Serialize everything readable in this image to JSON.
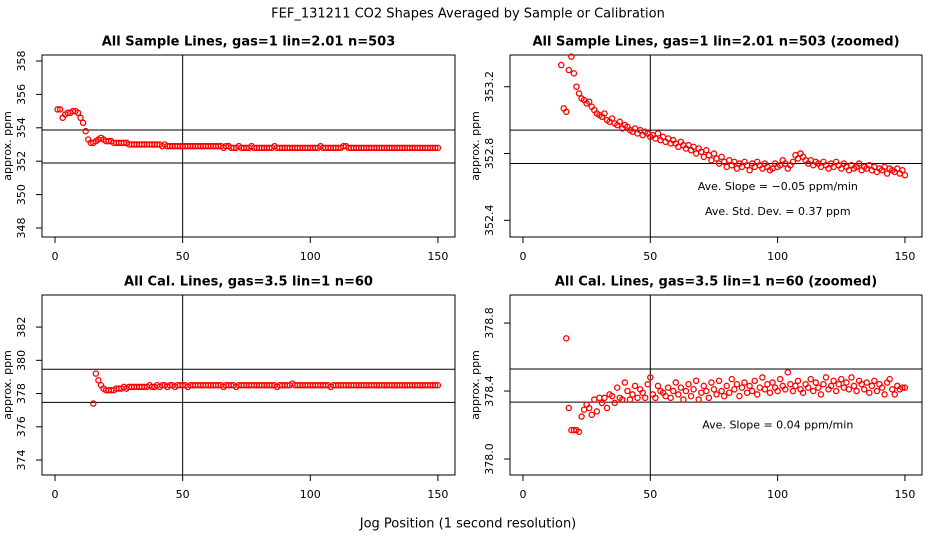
{
  "title": "FEF_131211  CO2 Shapes Averaged by Sample or Calibration",
  "xlabel": "Jog Position (1 second resolution)",
  "chart_data": [
    {
      "type": "scatter",
      "title": "All Sample Lines, gas=1 lin=2.01 n=503",
      "ylabel": "approx. ppm",
      "color": "#ff0000",
      "xlim": [
        -5.1,
        156.7
      ],
      "xticks": [
        0,
        50,
        100,
        150
      ],
      "ylim": [
        347.46,
        358.36
      ],
      "yticks": [
        348,
        350,
        352,
        354,
        356,
        358
      ],
      "ref_lines_y": [
        353.87,
        351.89
      ],
      "ref_line_x": 50,
      "x": [
        1,
        2,
        3,
        4,
        5,
        6,
        7,
        8,
        9,
        10,
        11,
        12,
        13,
        14,
        15,
        16,
        17,
        18,
        19,
        20,
        21,
        22,
        23,
        24,
        25,
        26,
        27,
        28,
        29,
        30,
        31,
        32,
        33,
        34,
        35,
        36,
        37,
        38,
        39,
        40,
        41,
        42,
        43,
        44,
        45,
        46,
        47,
        48,
        49,
        50,
        51,
        52,
        53,
        54,
        55,
        56,
        57,
        58,
        59,
        60,
        61,
        62,
        63,
        64,
        65,
        66,
        67,
        68,
        69,
        70,
        71,
        72,
        73,
        74,
        75,
        76,
        77,
        78,
        79,
        80,
        81,
        82,
        83,
        84,
        85,
        86,
        87,
        88,
        89,
        90,
        91,
        92,
        93,
        94,
        95,
        96,
        97,
        98,
        99,
        100,
        101,
        102,
        103,
        104,
        105,
        106,
        107,
        108,
        109,
        110,
        111,
        112,
        113,
        114,
        115,
        116,
        117,
        118,
        119,
        120,
        121,
        122,
        123,
        124,
        125,
        126,
        127,
        128,
        129,
        130,
        131,
        132,
        133,
        134,
        135,
        136,
        137,
        138,
        139,
        140,
        141,
        142,
        143,
        144,
        145,
        146,
        147,
        148,
        149,
        150
      ],
      "values": [
        355.1,
        355.1,
        354.6,
        354.8,
        354.9,
        354.9,
        355.0,
        355.0,
        354.9,
        354.6,
        354.3,
        353.8,
        353.3,
        353.1,
        353.1,
        353.2,
        353.3,
        353.4,
        353.3,
        353.2,
        353.2,
        353.2,
        353.1,
        353.1,
        353.1,
        353.1,
        353.1,
        353.1,
        353.0,
        353.0,
        353.0,
        353.0,
        353.0,
        353.0,
        353.0,
        353.0,
        353.0,
        353.0,
        353.0,
        353.0,
        353.0,
        352.9,
        353.0,
        352.9,
        352.9,
        352.9,
        352.9,
        352.9,
        352.9,
        352.9,
        352.9,
        352.9,
        352.9,
        352.9,
        352.9,
        352.9,
        352.9,
        352.9,
        352.9,
        352.9,
        352.9,
        352.9,
        352.9,
        352.9,
        352.9,
        352.8,
        352.9,
        352.9,
        352.8,
        352.8,
        352.8,
        352.9,
        352.8,
        352.8,
        352.8,
        352.8,
        352.9,
        352.8,
        352.8,
        352.8,
        352.8,
        352.8,
        352.8,
        352.8,
        352.8,
        352.9,
        352.8,
        352.8,
        352.8,
        352.8,
        352.8,
        352.8,
        352.8,
        352.8,
        352.8,
        352.8,
        352.8,
        352.8,
        352.8,
        352.8,
        352.8,
        352.8,
        352.8,
        352.9,
        352.8,
        352.8,
        352.8,
        352.8,
        352.8,
        352.8,
        352.8,
        352.8,
        352.9,
        352.9,
        352.8,
        352.8,
        352.8,
        352.8,
        352.8,
        352.8,
        352.8,
        352.8,
        352.8,
        352.8,
        352.8,
        352.8,
        352.8,
        352.8,
        352.8,
        352.8,
        352.8,
        352.8,
        352.8,
        352.8,
        352.8,
        352.8,
        352.8,
        352.8,
        352.8,
        352.8,
        352.8,
        352.8,
        352.8,
        352.8,
        352.8,
        352.8,
        352.8,
        352.8,
        352.8,
        352.8
      ]
    },
    {
      "type": "scatter",
      "title": "All Sample Lines, gas=1 lin=2.01 n=503 (zoomed)",
      "ylabel": "approx. ppm",
      "color": "#ff0000",
      "xlim": [
        -5.1,
        156.7
      ],
      "xticks": [
        0,
        50,
        100,
        150
      ],
      "ylim": [
        352.3,
        353.39
      ],
      "yticks": [
        352.4,
        352.8,
        353.2
      ],
      "ref_lines_y": [
        352.94,
        352.74
      ],
      "ref_line_x": 50,
      "annotations": [
        "Ave. Slope =  −0.05  ppm/min",
        "Ave. Std. Dev. =  0.37  ppm"
      ],
      "x": [
        15,
        16,
        17,
        18,
        19,
        20,
        21,
        22,
        23,
        24,
        25,
        26,
        27,
        28,
        29,
        30,
        31,
        32,
        33,
        34,
        35,
        36,
        37,
        38,
        39,
        40,
        41,
        42,
        43,
        44,
        45,
        46,
        47,
        48,
        49,
        50,
        51,
        52,
        53,
        54,
        55,
        56,
        57,
        58,
        59,
        60,
        61,
        62,
        63,
        64,
        65,
        66,
        67,
        68,
        69,
        70,
        71,
        72,
        73,
        74,
        75,
        76,
        77,
        78,
        79,
        80,
        81,
        82,
        83,
        84,
        85,
        86,
        87,
        88,
        89,
        90,
        91,
        92,
        93,
        94,
        95,
        96,
        97,
        98,
        99,
        100,
        101,
        102,
        103,
        104,
        105,
        106,
        107,
        108,
        109,
        110,
        111,
        112,
        113,
        114,
        115,
        116,
        117,
        118,
        119,
        120,
        121,
        122,
        123,
        124,
        125,
        126,
        127,
        128,
        129,
        130,
        131,
        132,
        133,
        134,
        135,
        136,
        137,
        138,
        139,
        140,
        141,
        142,
        143,
        144,
        145,
        146,
        147,
        148,
        149,
        150
      ],
      "values": [
        353.33,
        353.07,
        353.05,
        353.3,
        353.38,
        353.28,
        353.2,
        353.16,
        353.13,
        353.12,
        353.1,
        353.11,
        353.08,
        353.06,
        353.04,
        353.03,
        353.02,
        353.04,
        353.0,
        352.99,
        353.01,
        352.98,
        352.97,
        352.99,
        352.95,
        352.97,
        352.96,
        352.94,
        352.93,
        352.95,
        352.92,
        352.94,
        352.91,
        352.93,
        352.92,
        352.9,
        352.91,
        352.89,
        352.92,
        352.88,
        352.9,
        352.87,
        352.89,
        352.86,
        352.88,
        352.86,
        352.84,
        352.87,
        352.85,
        352.83,
        352.85,
        352.82,
        352.84,
        352.8,
        352.83,
        352.81,
        352.78,
        352.82,
        352.79,
        352.76,
        352.8,
        352.77,
        352.74,
        352.78,
        352.75,
        352.72,
        352.76,
        352.73,
        352.75,
        352.71,
        352.74,
        352.72,
        352.75,
        352.73,
        352.7,
        352.74,
        352.72,
        352.75,
        352.73,
        352.71,
        352.74,
        352.72,
        352.7,
        352.71,
        352.74,
        352.72,
        352.73,
        352.76,
        352.74,
        352.71,
        352.73,
        352.75,
        352.79,
        352.77,
        352.8,
        352.78,
        352.76,
        352.74,
        352.76,
        352.73,
        352.75,
        352.74,
        352.72,
        352.75,
        352.73,
        352.71,
        352.74,
        352.72,
        352.75,
        352.73,
        352.71,
        352.74,
        352.72,
        352.7,
        352.73,
        352.71,
        352.72,
        352.74,
        352.7,
        352.72,
        352.71,
        352.73,
        352.7,
        352.72,
        352.69,
        352.71,
        352.7,
        352.72,
        352.68,
        352.71,
        352.7,
        352.69,
        352.71,
        352.68,
        352.7,
        352.67
      ]
    },
    {
      "type": "scatter",
      "title": "All Cal. Lines, gas=3.5 lin=1 n=60",
      "ylabel": "approx. ppm",
      "color": "#ff0000",
      "xlim": [
        -5.1,
        156.7
      ],
      "xticks": [
        0,
        50,
        100,
        150
      ],
      "ylim": [
        373.1,
        383.93
      ],
      "yticks": [
        374,
        376,
        378,
        380,
        382
      ],
      "ref_lines_y": [
        379.46,
        377.47
      ],
      "ref_line_x": 50,
      "x": [
        15,
        16,
        17,
        18,
        19,
        20,
        21,
        22,
        23,
        24,
        25,
        26,
        27,
        28,
        29,
        30,
        31,
        32,
        33,
        34,
        35,
        36,
        37,
        38,
        39,
        40,
        41,
        42,
        43,
        44,
        45,
        46,
        47,
        48,
        49,
        50,
        51,
        52,
        53,
        54,
        55,
        56,
        57,
        58,
        59,
        60,
        61,
        62,
        63,
        64,
        65,
        66,
        67,
        68,
        69,
        70,
        71,
        72,
        73,
        74,
        75,
        76,
        77,
        78,
        79,
        80,
        81,
        82,
        83,
        84,
        85,
        86,
        87,
        88,
        89,
        90,
        91,
        92,
        93,
        94,
        95,
        96,
        97,
        98,
        99,
        100,
        101,
        102,
        103,
        104,
        105,
        106,
        107,
        108,
        109,
        110,
        111,
        112,
        113,
        114,
        115,
        116,
        117,
        118,
        119,
        120,
        121,
        122,
        123,
        124,
        125,
        126,
        127,
        128,
        129,
        130,
        131,
        132,
        133,
        134,
        135,
        136,
        137,
        138,
        139,
        140,
        141,
        142,
        143,
        144,
        145,
        146,
        147,
        148,
        149,
        150
      ],
      "values": [
        377.4,
        379.2,
        378.8,
        378.5,
        378.3,
        378.2,
        378.2,
        378.2,
        378.2,
        378.3,
        378.3,
        378.3,
        378.4,
        378.3,
        378.4,
        378.4,
        378.4,
        378.4,
        378.4,
        378.4,
        378.4,
        378.4,
        378.5,
        378.4,
        378.4,
        378.5,
        378.4,
        378.5,
        378.5,
        378.4,
        378.5,
        378.5,
        378.4,
        378.5,
        378.5,
        378.5,
        378.5,
        378.4,
        378.5,
        378.5,
        378.5,
        378.5,
        378.5,
        378.5,
        378.5,
        378.5,
        378.5,
        378.5,
        378.5,
        378.5,
        378.5,
        378.4,
        378.5,
        378.5,
        378.5,
        378.5,
        378.4,
        378.5,
        378.5,
        378.5,
        378.5,
        378.5,
        378.5,
        378.5,
        378.5,
        378.5,
        378.5,
        378.5,
        378.5,
        378.5,
        378.5,
        378.5,
        378.4,
        378.5,
        378.5,
        378.5,
        378.5,
        378.5,
        378.6,
        378.5,
        378.5,
        378.5,
        378.5,
        378.5,
        378.5,
        378.5,
        378.5,
        378.5,
        378.5,
        378.5,
        378.5,
        378.5,
        378.5,
        378.4,
        378.5,
        378.5,
        378.5,
        378.5,
        378.5,
        378.5,
        378.5,
        378.5,
        378.5,
        378.5,
        378.5,
        378.5,
        378.5,
        378.5,
        378.5,
        378.5,
        378.5,
        378.5,
        378.5,
        378.5,
        378.5,
        378.5,
        378.5,
        378.5,
        378.5,
        378.5,
        378.5,
        378.5,
        378.5,
        378.5,
        378.5,
        378.5,
        378.5,
        378.5,
        378.5,
        378.5,
        378.5,
        378.5,
        378.5,
        378.5,
        378.5,
        378.5
      ]
    },
    {
      "type": "scatter",
      "title": "All Cal. Lines, gas=3.5 lin=1 n=60 (zoomed)",
      "ylabel": "approx. ppm",
      "color": "#ff0000",
      "xlim": [
        -5.1,
        156.7
      ],
      "xticks": [
        0,
        50,
        100,
        150
      ],
      "ylim": [
        377.906,
        378.965
      ],
      "yticks": [
        {
          "value": 378,
          "label": "378.0"
        },
        378.4,
        378.8
      ],
      "ref_lines_y": [
        378.53,
        378.335
      ],
      "ref_line_x": 50,
      "annotations": [
        "Ave. Slope =  0.04  ppm/min"
      ],
      "x": [
        17,
        18,
        19,
        20,
        21,
        22,
        23,
        24,
        25,
        26,
        27,
        28,
        29,
        30,
        31,
        32,
        33,
        34,
        35,
        36,
        37,
        38,
        39,
        40,
        41,
        42,
        43,
        44,
        45,
        46,
        47,
        48,
        49,
        50,
        51,
        52,
        53,
        54,
        55,
        56,
        57,
        58,
        59,
        60,
        61,
        62,
        63,
        64,
        65,
        66,
        67,
        68,
        69,
        70,
        71,
        72,
        73,
        74,
        75,
        76,
        77,
        78,
        79,
        80,
        81,
        82,
        83,
        84,
        85,
        86,
        87,
        88,
        89,
        90,
        91,
        92,
        93,
        94,
        95,
        96,
        97,
        98,
        99,
        100,
        101,
        102,
        103,
        104,
        105,
        106,
        107,
        108,
        109,
        110,
        111,
        112,
        113,
        114,
        115,
        116,
        117,
        118,
        119,
        120,
        121,
        122,
        123,
        124,
        125,
        126,
        127,
        128,
        129,
        130,
        131,
        132,
        133,
        134,
        135,
        136,
        137,
        138,
        139,
        140,
        141,
        142,
        143,
        144,
        145,
        146,
        147,
        148,
        149,
        150
      ],
      "values": [
        378.71,
        378.3,
        378.17,
        378.17,
        378.17,
        378.16,
        378.25,
        378.29,
        378.32,
        378.3,
        378.26,
        378.35,
        378.28,
        378.36,
        378.33,
        378.36,
        378.3,
        378.38,
        378.37,
        378.33,
        378.42,
        378.36,
        378.35,
        378.45,
        378.4,
        378.35,
        378.38,
        378.43,
        378.36,
        378.41,
        378.39,
        378.36,
        378.44,
        378.48,
        378.38,
        378.36,
        378.43,
        378.4,
        378.39,
        378.37,
        378.42,
        378.36,
        378.4,
        378.45,
        378.38,
        378.42,
        378.35,
        378.4,
        378.44,
        378.37,
        378.41,
        378.46,
        378.35,
        378.39,
        378.43,
        378.4,
        378.36,
        378.45,
        378.41,
        378.38,
        378.46,
        378.4,
        378.37,
        378.43,
        378.39,
        378.47,
        378.41,
        378.44,
        378.37,
        378.42,
        378.45,
        378.39,
        378.43,
        378.4,
        378.46,
        378.38,
        378.42,
        378.48,
        378.41,
        378.44,
        378.39,
        378.45,
        378.42,
        378.4,
        378.47,
        378.43,
        378.41,
        378.51,
        378.44,
        378.4,
        378.43,
        378.46,
        378.41,
        378.39,
        378.44,
        378.42,
        378.47,
        378.4,
        378.45,
        378.42,
        378.38,
        378.44,
        378.48,
        378.41,
        378.43,
        378.46,
        378.4,
        378.44,
        378.47,
        378.42,
        378.45,
        378.41,
        378.48,
        378.43,
        378.4,
        378.46,
        378.44,
        378.41,
        378.45,
        378.39,
        378.43,
        378.46,
        378.4,
        378.44,
        378.42,
        378.38,
        378.45,
        378.47,
        378.41,
        378.38,
        378.43,
        378.41,
        378.42,
        378.42
      ]
    }
  ]
}
